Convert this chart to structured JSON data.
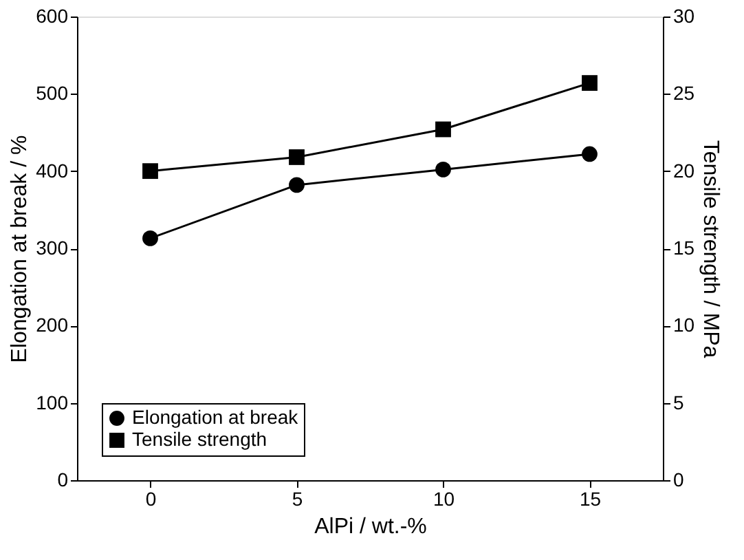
{
  "chart_data": {
    "type": "line",
    "xlabel": "AlPi / wt.-%",
    "ylabel": "Elongation at break / %",
    "y2label": "Tensile strength / MPa",
    "x": [
      0,
      5,
      10,
      15
    ],
    "series": [
      {
        "name": "Elongation at break",
        "color": "#000000",
        "marker": "circle",
        "values": [
          313,
          382,
          402,
          422
        ]
      },
      {
        "name": "Tensile strength",
        "color": "#000000",
        "marker": "square",
        "axis": "y2",
        "values": [
          20.0,
          20.9,
          22.7,
          25.7
        ]
      }
    ],
    "xlim": [
      -2.5,
      17.5
    ],
    "xticks": [
      0,
      5,
      10,
      15
    ],
    "ylim": [
      0,
      600
    ],
    "yticks": [
      0,
      100,
      200,
      300,
      400,
      500,
      600
    ],
    "y2lim": [
      0,
      30
    ],
    "y2ticks": [
      0,
      5,
      10,
      15,
      20,
      25,
      30
    ],
    "grid": false,
    "legend": "bottom left",
    "line_style": "solid"
  }
}
